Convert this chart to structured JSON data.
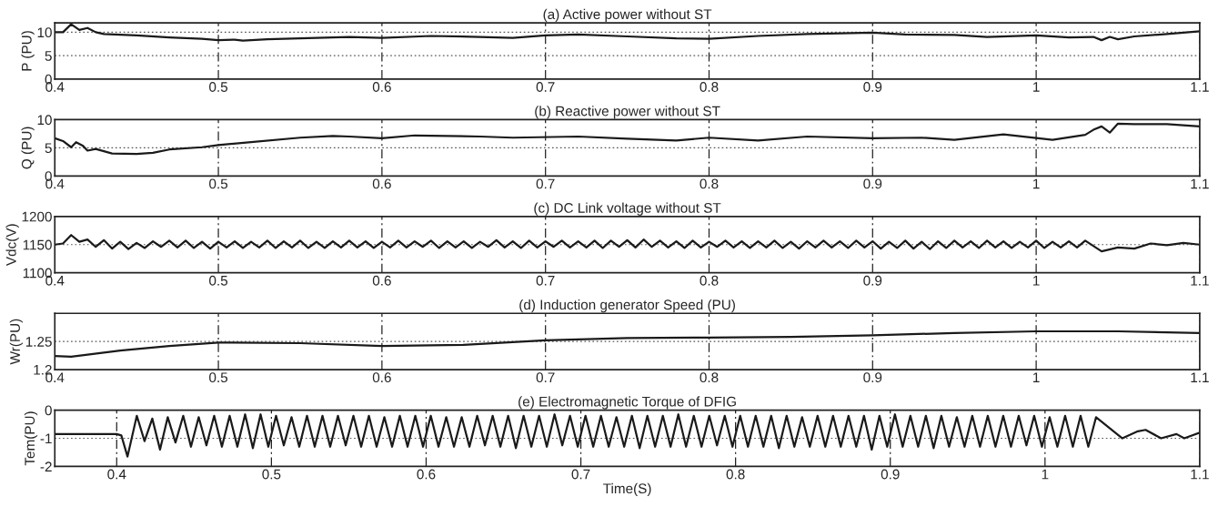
{
  "chart_data": [
    {
      "type": "line",
      "title": "(a) Active power without ST",
      "ylabel": "P (PU)",
      "xlim": [
        0.4,
        1.1
      ],
      "ylim": [
        0,
        12
      ],
      "xticks": [
        0.4,
        0.5,
        0.6,
        0.7,
        0.8,
        0.9,
        1,
        1.1
      ],
      "yticks": [
        0,
        5,
        10
      ],
      "grid": "x",
      "ref_lines": [
        {
          "axis": "y",
          "value": 5,
          "line_style": "dotted",
          "color": "#555555"
        },
        {
          "axis": "y",
          "value": 10,
          "line_style": "dotted",
          "color": "#555555"
        }
      ],
      "series": [
        {
          "color": "#1a1a1a",
          "x": [
            0.4,
            0.405,
            0.41,
            0.415,
            0.42,
            0.425,
            0.43,
            0.45,
            0.47,
            0.49,
            0.5,
            0.51,
            0.515,
            0.53,
            0.56,
            0.58,
            0.6,
            0.63,
            0.66,
            0.68,
            0.7,
            0.72,
            0.75,
            0.78,
            0.8,
            0.83,
            0.86,
            0.9,
            0.92,
            0.95,
            0.97,
            1.0,
            1.02,
            1.035,
            1.04,
            1.045,
            1.05,
            1.06,
            1.08,
            1.1
          ],
          "values": [
            10,
            10,
            11.7,
            10.5,
            10.9,
            10.0,
            9.6,
            9.3,
            8.9,
            8.6,
            8.3,
            8.4,
            8.2,
            8.5,
            8.8,
            9.0,
            8.8,
            9.2,
            9.0,
            8.8,
            9.3,
            9.5,
            9.1,
            8.7,
            8.6,
            9.2,
            9.6,
            9.9,
            9.5,
            9.4,
            9.0,
            9.3,
            8.9,
            9.0,
            8.3,
            9.0,
            8.5,
            9.1,
            9.6,
            10.2
          ]
        }
      ]
    },
    {
      "type": "line",
      "title": "(b) Reactive power without ST",
      "ylabel": "Q (PU)",
      "xlim": [
        0.4,
        1.1
      ],
      "ylim": [
        0,
        10
      ],
      "xticks": [
        0.4,
        0.5,
        0.6,
        0.7,
        0.8,
        0.9,
        1,
        1.1
      ],
      "yticks": [
        0,
        5,
        10
      ],
      "grid": "x",
      "ref_lines": [
        {
          "axis": "y",
          "value": 5,
          "line_style": "dotted",
          "color": "#555555"
        }
      ],
      "series": [
        {
          "color": "#1a1a1a",
          "x": [
            0.4,
            0.405,
            0.41,
            0.413,
            0.417,
            0.42,
            0.425,
            0.435,
            0.45,
            0.46,
            0.47,
            0.49,
            0.5,
            0.52,
            0.55,
            0.57,
            0.58,
            0.6,
            0.62,
            0.66,
            0.68,
            0.72,
            0.75,
            0.78,
            0.8,
            0.83,
            0.86,
            0.9,
            0.93,
            0.95,
            0.98,
            0.995,
            1.01,
            1.03,
            1.035,
            1.04,
            1.045,
            1.05,
            1.06,
            1.08,
            1.1
          ],
          "values": [
            6.7,
            6.2,
            5.1,
            6.0,
            5.4,
            4.5,
            4.8,
            4.0,
            3.9,
            4.1,
            4.7,
            5.1,
            5.5,
            6.0,
            6.8,
            7.1,
            7.0,
            6.7,
            7.2,
            7.0,
            6.8,
            7.0,
            6.6,
            6.3,
            6.8,
            6.3,
            7.0,
            6.7,
            6.8,
            6.4,
            7.4,
            6.9,
            6.4,
            7.3,
            8.2,
            8.8,
            7.7,
            9.3,
            9.2,
            9.2,
            8.8
          ]
        }
      ]
    },
    {
      "type": "line",
      "title": "(c) DC Link voltage without ST",
      "ylabel": "Vdc(V)",
      "xlim": [
        0.4,
        1.1
      ],
      "ylim": [
        1100,
        1200
      ],
      "xticks": [
        0.4,
        0.5,
        0.6,
        0.7,
        0.8,
        0.9,
        1,
        1.1
      ],
      "yticks": [
        1100,
        1150,
        1200
      ],
      "grid": "x",
      "ref_lines": [
        {
          "axis": "y",
          "value": 1150,
          "line_style": "dotted",
          "color": "#555555"
        }
      ],
      "series": [
        {
          "color": "#1a1a1a",
          "x": [
            0.4,
            0.405,
            0.41,
            0.415,
            0.42,
            0.425,
            0.43,
            0.435,
            0.44,
            0.445,
            0.45,
            0.455,
            0.46,
            0.465,
            0.47,
            0.475,
            0.48,
            0.485,
            0.49,
            0.495,
            0.5,
            0.505,
            0.51,
            0.515,
            0.52,
            0.525,
            0.53,
            0.535,
            0.54,
            0.545,
            0.55,
            0.555,
            0.56,
            0.565,
            0.57,
            0.575,
            0.58,
            0.585,
            0.59,
            0.595,
            0.6,
            0.605,
            0.61,
            0.615,
            0.62,
            0.625,
            0.63,
            0.635,
            0.64,
            0.645,
            0.65,
            0.655,
            0.66,
            0.665,
            0.67,
            0.675,
            0.68,
            0.685,
            0.69,
            0.695,
            0.7,
            0.705,
            0.71,
            0.715,
            0.72,
            0.725,
            0.73,
            0.735,
            0.74,
            0.745,
            0.75,
            0.755,
            0.76,
            0.765,
            0.77,
            0.775,
            0.78,
            0.785,
            0.79,
            0.795,
            0.8,
            0.805,
            0.81,
            0.815,
            0.82,
            0.825,
            0.83,
            0.835,
            0.84,
            0.845,
            0.85,
            0.855,
            0.86,
            0.865,
            0.87,
            0.875,
            0.88,
            0.885,
            0.89,
            0.895,
            0.9,
            0.905,
            0.91,
            0.915,
            0.92,
            0.925,
            0.93,
            0.935,
            0.94,
            0.945,
            0.95,
            0.955,
            0.96,
            0.965,
            0.97,
            0.975,
            0.98,
            0.985,
            0.99,
            0.995,
            1.0,
            1.005,
            1.01,
            1.015,
            1.02,
            1.025,
            1.03,
            1.04,
            1.05,
            1.06,
            1.07,
            1.08,
            1.09,
            1.1
          ],
          "values": [
            1150,
            1152,
            1167,
            1155,
            1159,
            1146,
            1158,
            1143,
            1155,
            1142,
            1153,
            1144,
            1156,
            1146,
            1157,
            1145,
            1157,
            1144,
            1155,
            1143,
            1155,
            1145,
            1156,
            1144,
            1155,
            1145,
            1157,
            1144,
            1156,
            1145,
            1157,
            1144,
            1155,
            1144,
            1156,
            1145,
            1157,
            1145,
            1156,
            1144,
            1155,
            1145,
            1157,
            1145,
            1156,
            1146,
            1157,
            1144,
            1156,
            1145,
            1156,
            1144,
            1155,
            1146,
            1158,
            1145,
            1156,
            1144,
            1157,
            1145,
            1156,
            1146,
            1157,
            1145,
            1156,
            1145,
            1157,
            1144,
            1157,
            1146,
            1158,
            1145,
            1159,
            1146,
            1157,
            1145,
            1156,
            1144,
            1157,
            1145,
            1155,
            1146,
            1157,
            1145,
            1156,
            1144,
            1156,
            1145,
            1157,
            1144,
            1155,
            1143,
            1156,
            1145,
            1157,
            1145,
            1156,
            1144,
            1157,
            1145,
            1156,
            1143,
            1155,
            1144,
            1157,
            1143,
            1155,
            1142,
            1156,
            1144,
            1157,
            1145,
            1156,
            1144,
            1157,
            1145,
            1156,
            1144,
            1155,
            1145,
            1157,
            1144,
            1155,
            1145,
            1156,
            1145,
            1157,
            1138,
            1145,
            1143,
            1152,
            1149,
            1153,
            1150
          ]
        }
      ]
    },
    {
      "type": "line",
      "title": "(d) Induction generator Speed (PU)",
      "ylabel": "Wr(PU)",
      "xlim": [
        0.4,
        1.1
      ],
      "ylim": [
        1.2,
        1.3
      ],
      "xticks": [
        0.4,
        0.5,
        0.6,
        0.7,
        0.8,
        0.9,
        1,
        1.1
      ],
      "yticks": [
        1.2,
        1.25
      ],
      "grid": "x",
      "ref_lines": [
        {
          "axis": "y",
          "value": 1.25,
          "line_style": "dotted",
          "color": "#555555"
        }
      ],
      "series": [
        {
          "color": "#1a1a1a",
          "x": [
            0.4,
            0.41,
            0.44,
            0.47,
            0.5,
            0.55,
            0.6,
            0.65,
            0.7,
            0.75,
            0.8,
            0.85,
            0.9,
            0.95,
            1.0,
            1.05,
            1.1
          ],
          "values": [
            1.224,
            1.223,
            1.234,
            1.242,
            1.248,
            1.247,
            1.242,
            1.244,
            1.252,
            1.256,
            1.257,
            1.258,
            1.261,
            1.265,
            1.268,
            1.268,
            1.265
          ]
        }
      ]
    },
    {
      "type": "line",
      "title": "(e) Electromagnetic Torque of DFIG",
      "ylabel": "Tem(PU)",
      "xlabel": "Time(S)",
      "xlim": [
        0.36,
        1.1
      ],
      "ylim": [
        -2,
        0
      ],
      "xticks": [
        0.4,
        0.5,
        0.6,
        0.7,
        0.8,
        0.9,
        1,
        1.1
      ],
      "yticks": [
        -2,
        -1,
        0
      ],
      "grid": "x",
      "ref_lines": [
        {
          "axis": "y",
          "value": -1,
          "line_style": "dotted",
          "color": "#555555"
        }
      ],
      "series": [
        {
          "color": "#1a1a1a",
          "x": [
            0.36,
            0.4,
            0.403,
            0.407,
            0.413,
            0.418,
            0.423,
            0.428,
            0.433,
            0.438,
            0.443,
            0.448,
            0.453,
            0.458,
            0.463,
            0.468,
            0.473,
            0.478,
            0.483,
            0.488,
            0.493,
            0.498,
            0.503,
            0.508,
            0.513,
            0.518,
            0.523,
            0.528,
            0.533,
            0.538,
            0.543,
            0.548,
            0.553,
            0.558,
            0.563,
            0.568,
            0.573,
            0.578,
            0.583,
            0.588,
            0.593,
            0.598,
            0.603,
            0.608,
            0.613,
            0.618,
            0.623,
            0.628,
            0.633,
            0.638,
            0.643,
            0.648,
            0.653,
            0.658,
            0.663,
            0.668,
            0.673,
            0.678,
            0.683,
            0.688,
            0.693,
            0.698,
            0.703,
            0.708,
            0.713,
            0.718,
            0.723,
            0.728,
            0.733,
            0.738,
            0.743,
            0.748,
            0.753,
            0.758,
            0.763,
            0.768,
            0.773,
            0.778,
            0.783,
            0.788,
            0.793,
            0.798,
            0.803,
            0.808,
            0.813,
            0.818,
            0.823,
            0.828,
            0.833,
            0.838,
            0.843,
            0.848,
            0.853,
            0.858,
            0.863,
            0.868,
            0.873,
            0.878,
            0.883,
            0.888,
            0.893,
            0.898,
            0.903,
            0.908,
            0.913,
            0.918,
            0.923,
            0.928,
            0.933,
            0.938,
            0.943,
            0.948,
            0.953,
            0.958,
            0.963,
            0.968,
            0.973,
            0.978,
            0.983,
            0.988,
            0.993,
            0.998,
            1.003,
            1.008,
            1.013,
            1.018,
            1.023,
            1.028,
            1.033,
            1.05,
            1.06,
            1.065,
            1.075,
            1.085,
            1.09,
            1.1
          ],
          "values": [
            -0.85,
            -0.85,
            -0.9,
            -1.65,
            -0.2,
            -1.1,
            -0.3,
            -1.4,
            -0.25,
            -1.15,
            -0.2,
            -1.3,
            -0.25,
            -1.25,
            -0.2,
            -1.3,
            -0.2,
            -1.3,
            -0.15,
            -1.35,
            -0.15,
            -1.3,
            -0.2,
            -1.25,
            -0.25,
            -1.3,
            -0.2,
            -1.3,
            -0.2,
            -1.3,
            -0.2,
            -1.25,
            -0.2,
            -1.3,
            -0.2,
            -1.3,
            -0.25,
            -1.3,
            -0.2,
            -1.3,
            -0.2,
            -1.3,
            -0.2,
            -1.3,
            -0.25,
            -1.3,
            -0.25,
            -1.3,
            -0.2,
            -1.25,
            -0.2,
            -1.3,
            -0.2,
            -1.35,
            -0.2,
            -1.3,
            -0.2,
            -1.3,
            -0.15,
            -1.25,
            -0.2,
            -1.3,
            -0.2,
            -1.3,
            -0.2,
            -1.3,
            -0.25,
            -1.3,
            -0.2,
            -1.35,
            -0.2,
            -1.3,
            -0.2,
            -1.3,
            -0.15,
            -1.3,
            -0.2,
            -1.3,
            -0.2,
            -1.25,
            -0.2,
            -1.3,
            -0.2,
            -1.3,
            -0.2,
            -1.3,
            -0.2,
            -1.35,
            -0.2,
            -1.3,
            -0.25,
            -1.3,
            -0.2,
            -1.3,
            -0.2,
            -1.3,
            -0.2,
            -1.3,
            -0.2,
            -1.4,
            -0.2,
            -1.3,
            -0.15,
            -1.3,
            -0.2,
            -1.3,
            -0.2,
            -1.35,
            -0.2,
            -1.3,
            -0.25,
            -1.3,
            -0.2,
            -1.3,
            -0.2,
            -1.3,
            -0.2,
            -1.3,
            -0.2,
            -1.25,
            -0.2,
            -1.3,
            -0.25,
            -1.3,
            -0.2,
            -1.3,
            -0.2,
            -1.3,
            -0.25,
            -1.0,
            -0.75,
            -0.7,
            -1.0,
            -0.85,
            -1.0,
            -0.8
          ]
        }
      ]
    }
  ]
}
